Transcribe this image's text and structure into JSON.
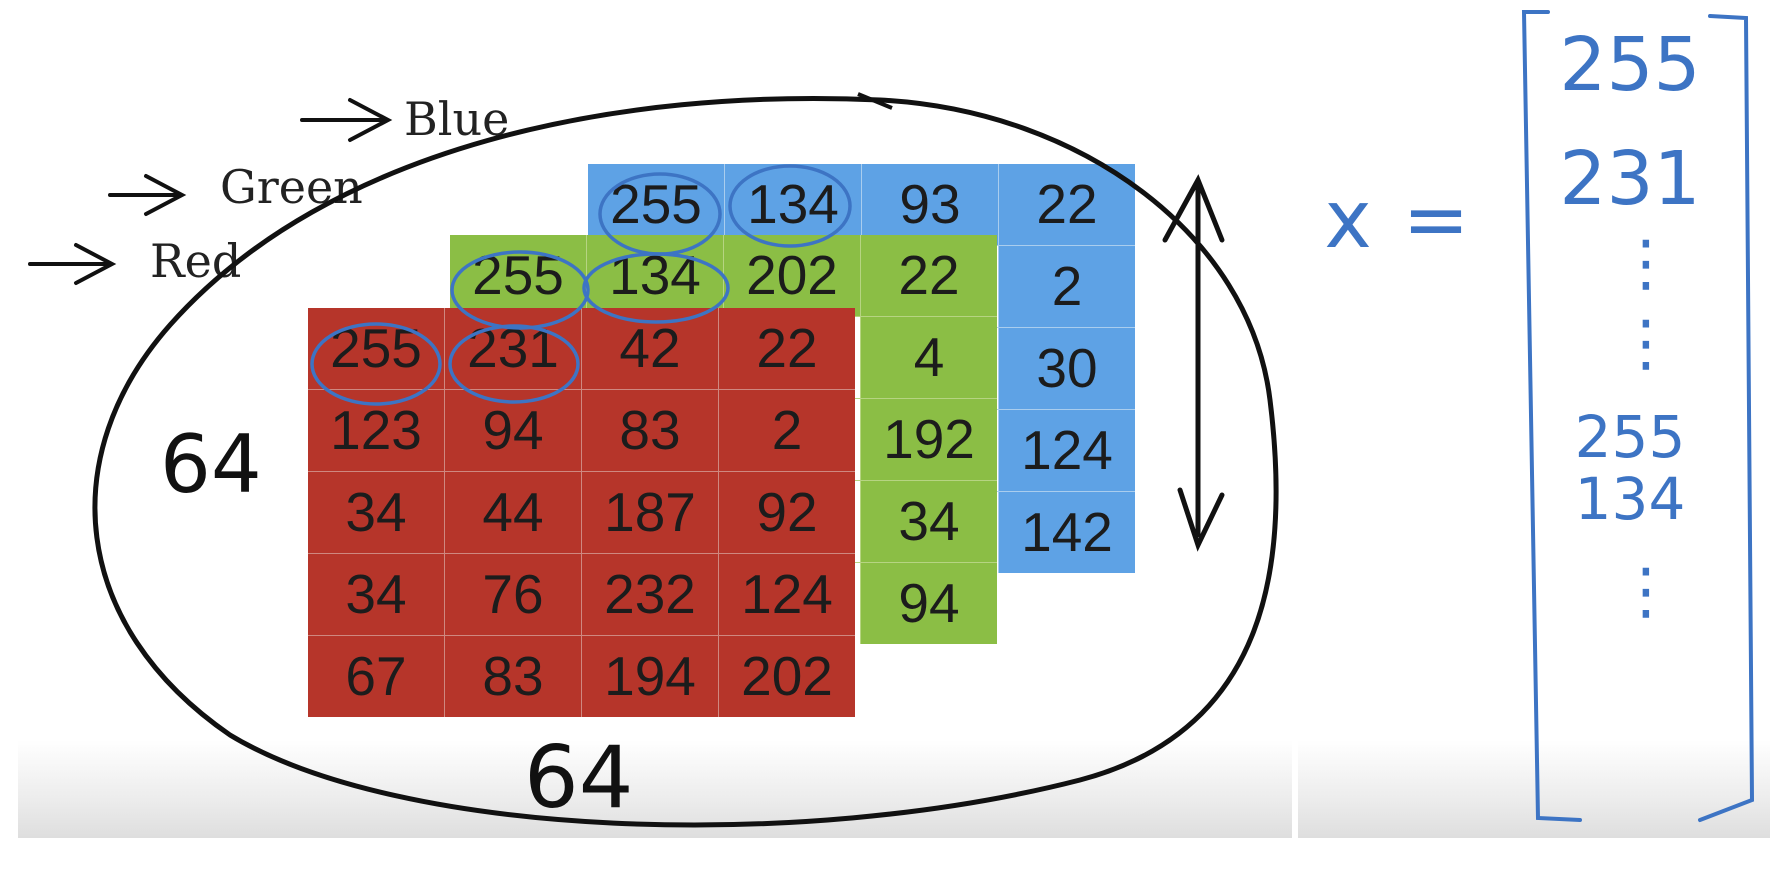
{
  "channels": {
    "blue": {
      "label": "Blue",
      "color": "#5ea2e5",
      "values": [
        "255",
        "134",
        "93",
        "22",
        "",
        "",
        "",
        "2",
        "",
        "",
        "",
        "30",
        "",
        "",
        "",
        "124",
        "",
        "",
        "",
        "142"
      ]
    },
    "green": {
      "label": "Green",
      "color": "#8bbe45",
      "values": [
        "255",
        "134",
        "202",
        "22",
        "",
        "",
        "",
        "4",
        "",
        "",
        "",
        "192",
        "",
        "",
        "",
        "34",
        "",
        "",
        "",
        "94"
      ]
    },
    "red": {
      "label": "Red",
      "color": "#b6352a",
      "values": [
        "255",
        "231",
        "42",
        "22",
        "123",
        "94",
        "83",
        "2",
        "34",
        "44",
        "187",
        "92",
        "34",
        "76",
        "232",
        "124",
        "67",
        "83",
        "194",
        "202"
      ]
    }
  },
  "annotations": {
    "height": "64",
    "width": "64"
  },
  "feature_vector": {
    "variable": "x",
    "equals": "=",
    "entries": [
      "255",
      "231",
      "⋮",
      "⋮",
      "255",
      "134",
      "⋮"
    ]
  },
  "colors": {
    "ink": "#111111",
    "pen_blue": "#3d74c4"
  }
}
